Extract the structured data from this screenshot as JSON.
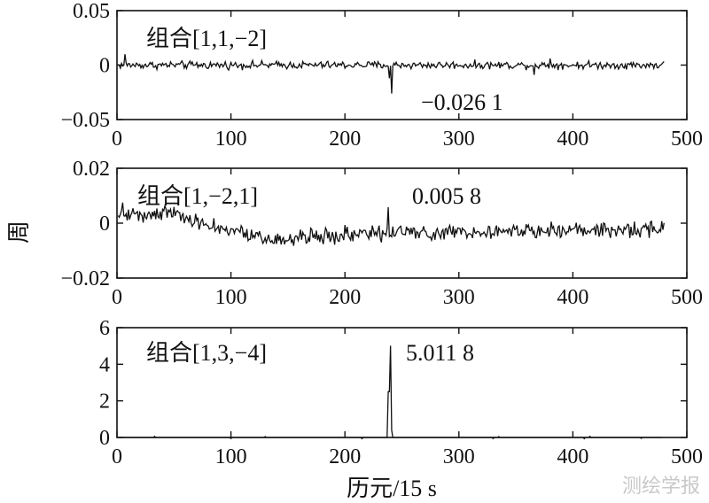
{
  "chart_data": [
    {
      "type": "line",
      "annotation_label": "组合[1,1,−2]",
      "peak_label": "−0.026 1",
      "x_range": [
        0,
        500
      ],
      "y_range": [
        -0.05,
        0.05
      ],
      "x_ticks": [
        0,
        100,
        200,
        300,
        400,
        500
      ],
      "x_tick_labels": [
        "0",
        "100",
        "200",
        "300",
        "400",
        "500"
      ],
      "y_ticks": [
        0.05,
        0,
        -0.05
      ],
      "y_tick_labels": [
        "0.05",
        "0",
        "−0.05"
      ],
      "series_x_max": 480,
      "baseline": 0.0,
      "noise": 0.003,
      "drift": [],
      "spikes": [
        [
          241,
          -0.0261
        ],
        [
          239,
          -0.012
        ],
        [
          7,
          0.01
        ],
        [
          366,
          -0.009
        ],
        [
          380,
          0.006
        ]
      ]
    },
    {
      "type": "line",
      "annotation_label": "组合[1,−2,1]",
      "peak_label": "0.005 8",
      "x_range": [
        0,
        500
      ],
      "y_range": [
        -0.02,
        0.02
      ],
      "x_ticks": [
        0,
        100,
        200,
        300,
        400,
        500
      ],
      "x_tick_labels": [
        "0",
        "100",
        "200",
        "300",
        "400",
        "500"
      ],
      "y_ticks": [
        0.02,
        0,
        -0.02
      ],
      "y_tick_labels": [
        "0.02",
        "0",
        "−0.02"
      ],
      "series_x_max": 480,
      "baseline": 0.0,
      "noise": 0.0025,
      "drift": [
        [
          0,
          0.003
        ],
        [
          50,
          0.004
        ],
        [
          80,
          -0.001
        ],
        [
          130,
          -0.006
        ],
        [
          200,
          -0.004
        ],
        [
          300,
          -0.003
        ],
        [
          480,
          -0.002
        ]
      ],
      "spikes": [
        [
          238,
          0.0058
        ],
        [
          5,
          0.0075
        ],
        [
          180,
          -0.006
        ],
        [
          232,
          -0.007
        ]
      ]
    },
    {
      "type": "line",
      "annotation_label": "组合[1,3,−4]",
      "peak_label": "5.011 8",
      "x_range": [
        0,
        500
      ],
      "y_range": [
        0,
        6
      ],
      "x_ticks": [
        0,
        100,
        200,
        300,
        400,
        500
      ],
      "x_tick_labels": [
        "0",
        "100",
        "200",
        "300",
        "400",
        "500"
      ],
      "y_ticks": [
        6,
        4,
        2,
        0
      ],
      "y_tick_labels": [
        "6",
        "4",
        "2",
        "0"
      ],
      "series_x_max": 478,
      "baseline": 0.0,
      "noise": 0.0,
      "drift": [],
      "spikes": [
        [
          240,
          5.0118
        ],
        [
          239,
          2.5
        ],
        [
          238,
          2.5
        ],
        [
          241,
          0.4
        ],
        [
          33,
          0.06
        ],
        [
          100,
          -0.06
        ],
        [
          130,
          0.05
        ],
        [
          215,
          -0.07
        ],
        [
          330,
          -0.06
        ],
        [
          335,
          0.05
        ],
        [
          410,
          -0.07
        ],
        [
          415,
          0.06
        ],
        [
          460,
          -0.05
        ]
      ]
    }
  ],
  "ylabel": "周",
  "xlabel": "历元/15 s",
  "watermark": "测绘学报"
}
